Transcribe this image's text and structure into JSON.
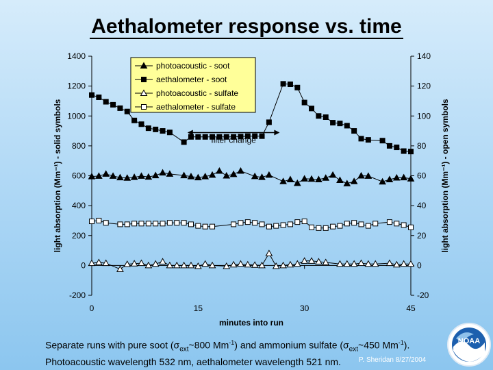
{
  "slide": {
    "title": "Aethalometer response vs. time",
    "caption_line1_a": "Separate runs with pure soot (",
    "caption_sigma1": "σ",
    "caption_sub1": "ext",
    "caption_line1_b": "~800 Mm",
    "caption_sup1": "-1",
    "caption_line1_c": ") and ammonium sulfate (",
    "caption_sigma2": "σ",
    "caption_sub2": "ext",
    "caption_line1_d": "~450",
    "caption_line2_a": "Mm",
    "caption_sup2": "-1",
    "caption_line2_b": ").  Photoacoustic wavelength 532 nm, aethalometer wavelength 521 nm.",
    "credit": "P. Sheridan  8/27/2004",
    "logo_text": "NOAA"
  },
  "chart_data": {
    "type": "scatter",
    "xlabel": "minutes into run",
    "ylabel_left": "light absorption (Mm⁻¹) - solid symbols",
    "ylabel_right": "light absorption (Mm⁻¹) - open symbols",
    "xlim": [
      0,
      45
    ],
    "ylim_left": [
      -200,
      1400
    ],
    "ylim_right": [
      -20,
      140
    ],
    "xticks": [
      0,
      15,
      30,
      45
    ],
    "yticks_left": [
      -200,
      0,
      200,
      400,
      600,
      800,
      1000,
      1200,
      1400
    ],
    "yticks_right": [
      -20,
      0,
      20,
      40,
      60,
      80,
      100,
      120,
      140
    ],
    "grid": false,
    "legend_position": "top-left",
    "annotations": [
      {
        "text": "filter change",
        "x_start": 13.5,
        "x_end": 26.5,
        "y_left": 820
      }
    ],
    "series": [
      {
        "name": "photoacoustic - soot",
        "axis": "left",
        "marker": "triangle",
        "filled": true,
        "x": [
          0,
          1,
          2,
          3,
          4,
          5,
          6,
          7,
          8,
          9,
          10,
          11,
          13,
          14,
          15,
          16,
          17,
          18,
          19,
          20,
          21,
          23,
          24,
          25,
          27,
          28,
          29,
          30,
          31,
          32,
          33,
          34,
          35,
          36,
          37,
          38,
          39,
          41,
          42,
          43,
          44,
          45
        ],
        "y": [
          595,
          598,
          612,
          598,
          588,
          585,
          590,
          598,
          592,
          602,
          620,
          612,
          602,
          595,
          588,
          595,
          605,
          632,
          600,
          610,
          632,
          596,
          590,
          605,
          562,
          575,
          550,
          580,
          578,
          575,
          585,
          605,
          570,
          548,
          562,
          600,
          598,
          560,
          575,
          586,
          588,
          580
        ]
      },
      {
        "name": "aethalometer - soot",
        "axis": "left",
        "marker": "square",
        "filled": true,
        "x": [
          0,
          1,
          2,
          3,
          4,
          5,
          6,
          7,
          8,
          9,
          10,
          11,
          13,
          14,
          15,
          16,
          17,
          18,
          19,
          20,
          21,
          22,
          23,
          24,
          25,
          27,
          28,
          29,
          30,
          31,
          32,
          33,
          34,
          35,
          36,
          37,
          38,
          39,
          41,
          42,
          43,
          44,
          45
        ],
        "y": [
          1140,
          1125,
          1095,
          1075,
          1052,
          1030,
          970,
          945,
          918,
          910,
          900,
          890,
          825,
          860,
          860,
          860,
          860,
          860,
          860,
          860,
          862,
          865,
          865,
          865,
          958,
          1215,
          1212,
          1190,
          1090,
          1050,
          1000,
          992,
          955,
          950,
          935,
          900,
          848,
          840,
          835,
          800,
          790,
          765,
          762
        ]
      },
      {
        "name": "photoacoustic - sulfate",
        "axis": "right",
        "marker": "triangle",
        "filled": false,
        "x": [
          0,
          1,
          2,
          4,
          5,
          6,
          7,
          8,
          9,
          10,
          11,
          12,
          13,
          14,
          15,
          16,
          17,
          19,
          20,
          21,
          22,
          23,
          24,
          25,
          26,
          27,
          28,
          29,
          30,
          31,
          32,
          33,
          35,
          36,
          37,
          38,
          39,
          40,
          42,
          43,
          44,
          45
        ],
        "y": [
          1.5,
          2,
          1.5,
          -2.5,
          0.8,
          1.2,
          1.5,
          0,
          1,
          2.5,
          0,
          0,
          0,
          0,
          -0.5,
          1,
          0,
          -0.5,
          0.5,
          1,
          0.5,
          0.3,
          0,
          8,
          -0.5,
          0,
          0.5,
          1,
          3,
          3,
          2.5,
          2,
          1,
          1,
          1,
          1.5,
          1,
          1,
          1.5,
          0.5,
          1,
          1
        ]
      },
      {
        "name": "aethalometer - sulfate",
        "axis": "right",
        "marker": "square",
        "filled": false,
        "x": [
          0,
          1,
          2,
          4,
          5,
          6,
          7,
          8,
          9,
          10,
          11,
          12,
          13,
          14,
          15,
          16,
          17,
          20,
          21,
          22,
          23,
          24,
          25,
          26,
          27,
          28,
          29,
          30,
          31,
          32,
          33,
          34,
          35,
          36,
          37,
          38,
          39,
          40,
          42,
          43,
          44,
          45
        ],
        "y": [
          29.5,
          30,
          28.5,
          27.5,
          27.5,
          28,
          28,
          28,
          28,
          28,
          28.5,
          28.5,
          28.5,
          27.5,
          26.5,
          26,
          26,
          27.5,
          28.5,
          29,
          28.5,
          27.5,
          26,
          26.5,
          27,
          27.5,
          29,
          29.5,
          25.5,
          25,
          25,
          26,
          26.5,
          28,
          28.5,
          27.5,
          26.5,
          28,
          29,
          28,
          27,
          25.5
        ]
      }
    ]
  }
}
